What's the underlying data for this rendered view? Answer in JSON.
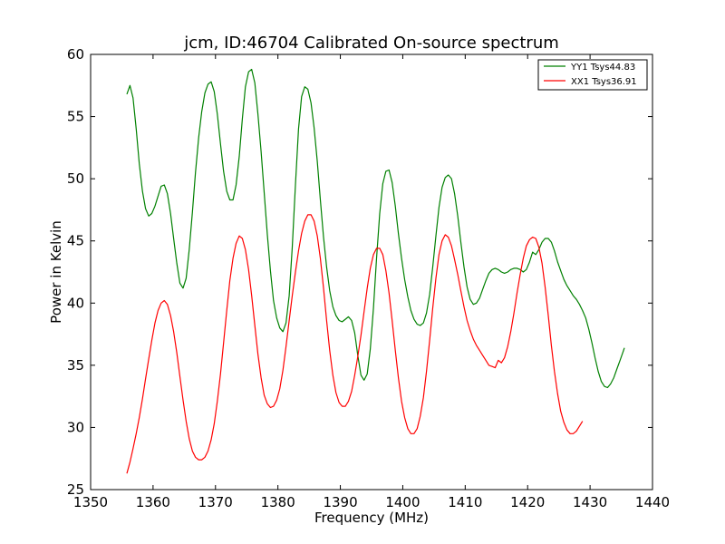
{
  "chart_data": {
    "type": "line",
    "title": "jcm, ID:46704 Calibrated On-source spectrum",
    "xlabel": "Frequency (MHz)",
    "ylabel": "Power in Kelvin",
    "xlim": [
      1350,
      1440
    ],
    "ylim": [
      25,
      60
    ],
    "xticks": [
      "1350",
      "1360",
      "1370",
      "1380",
      "1390",
      "1400",
      "1410",
      "1420",
      "1430",
      "1440"
    ],
    "yticks": [
      "25",
      "30",
      "35",
      "40",
      "45",
      "50",
      "55",
      "60"
    ],
    "grid": false,
    "legend_position": "top-right",
    "series": [
      {
        "name": "YY1 Tsys44.83",
        "color": "#008000",
        "points": [
          [
            1355.8,
            56.8
          ],
          [
            1356.3,
            57.5
          ],
          [
            1356.8,
            56.5
          ],
          [
            1357.3,
            54.0
          ],
          [
            1357.8,
            51.2
          ],
          [
            1358.3,
            49.0
          ],
          [
            1358.8,
            47.6
          ],
          [
            1359.3,
            47.0
          ],
          [
            1359.8,
            47.2
          ],
          [
            1360.3,
            47.8
          ],
          [
            1360.8,
            48.6
          ],
          [
            1361.3,
            49.4
          ],
          [
            1361.8,
            49.5
          ],
          [
            1362.3,
            48.8
          ],
          [
            1362.8,
            47.2
          ],
          [
            1363.3,
            45.2
          ],
          [
            1363.8,
            43.2
          ],
          [
            1364.3,
            41.6
          ],
          [
            1364.8,
            41.2
          ],
          [
            1365.3,
            42.0
          ],
          [
            1365.8,
            44.3
          ],
          [
            1366.3,
            47.3
          ],
          [
            1366.8,
            50.5
          ],
          [
            1367.3,
            53.3
          ],
          [
            1367.8,
            55.4
          ],
          [
            1368.3,
            56.9
          ],
          [
            1368.8,
            57.6
          ],
          [
            1369.3,
            57.8
          ],
          [
            1369.8,
            57.0
          ],
          [
            1370.3,
            55.2
          ],
          [
            1370.8,
            52.8
          ],
          [
            1371.3,
            50.6
          ],
          [
            1371.8,
            49.0
          ],
          [
            1372.3,
            48.3
          ],
          [
            1372.8,
            48.3
          ],
          [
            1373.3,
            49.5
          ],
          [
            1373.8,
            51.8
          ],
          [
            1374.3,
            54.8
          ],
          [
            1374.8,
            57.4
          ],
          [
            1375.3,
            58.6
          ],
          [
            1375.8,
            58.8
          ],
          [
            1376.3,
            57.7
          ],
          [
            1376.8,
            55.2
          ],
          [
            1377.3,
            52.2
          ],
          [
            1377.8,
            48.9
          ],
          [
            1378.3,
            45.5
          ],
          [
            1378.8,
            42.6
          ],
          [
            1379.3,
            40.2
          ],
          [
            1379.8,
            38.8
          ],
          [
            1380.3,
            38.0
          ],
          [
            1380.8,
            37.7
          ],
          [
            1381.3,
            38.4
          ],
          [
            1381.8,
            40.6
          ],
          [
            1382.3,
            44.5
          ],
          [
            1382.8,
            49.5
          ],
          [
            1383.3,
            54.0
          ],
          [
            1383.8,
            56.6
          ],
          [
            1384.3,
            57.4
          ],
          [
            1384.8,
            57.2
          ],
          [
            1385.3,
            56.1
          ],
          [
            1385.8,
            54.1
          ],
          [
            1386.3,
            51.4
          ],
          [
            1386.8,
            48.3
          ],
          [
            1387.3,
            45.3
          ],
          [
            1387.8,
            42.9
          ],
          [
            1388.3,
            41.0
          ],
          [
            1388.8,
            39.7
          ],
          [
            1389.3,
            39.0
          ],
          [
            1389.8,
            38.6
          ],
          [
            1390.3,
            38.5
          ],
          [
            1390.8,
            38.7
          ],
          [
            1391.3,
            38.9
          ],
          [
            1391.8,
            38.6
          ],
          [
            1392.3,
            37.6
          ],
          [
            1392.8,
            35.8
          ],
          [
            1393.3,
            34.2
          ],
          [
            1393.8,
            33.8
          ],
          [
            1394.3,
            34.3
          ],
          [
            1394.8,
            36.3
          ],
          [
            1395.3,
            39.6
          ],
          [
            1395.8,
            43.6
          ],
          [
            1396.3,
            47.2
          ],
          [
            1396.8,
            49.6
          ],
          [
            1397.3,
            50.6
          ],
          [
            1397.8,
            50.7
          ],
          [
            1398.3,
            49.7
          ],
          [
            1398.8,
            47.8
          ],
          [
            1399.3,
            45.6
          ],
          [
            1399.8,
            43.6
          ],
          [
            1400.3,
            41.9
          ],
          [
            1400.8,
            40.5
          ],
          [
            1401.3,
            39.4
          ],
          [
            1401.8,
            38.7
          ],
          [
            1402.3,
            38.3
          ],
          [
            1402.8,
            38.2
          ],
          [
            1403.3,
            38.4
          ],
          [
            1403.8,
            39.2
          ],
          [
            1404.3,
            40.7
          ],
          [
            1404.8,
            42.9
          ],
          [
            1405.3,
            45.4
          ],
          [
            1405.8,
            47.7
          ],
          [
            1406.3,
            49.3
          ],
          [
            1406.8,
            50.1
          ],
          [
            1407.3,
            50.3
          ],
          [
            1407.8,
            50.0
          ],
          [
            1408.3,
            48.8
          ],
          [
            1408.8,
            47.0
          ],
          [
            1409.3,
            44.9
          ],
          [
            1409.8,
            42.9
          ],
          [
            1410.3,
            41.3
          ],
          [
            1410.8,
            40.3
          ],
          [
            1411.3,
            39.9
          ],
          [
            1411.8,
            40.0
          ],
          [
            1412.3,
            40.4
          ],
          [
            1412.8,
            41.1
          ],
          [
            1413.3,
            41.8
          ],
          [
            1413.8,
            42.4
          ],
          [
            1414.3,
            42.7
          ],
          [
            1414.8,
            42.8
          ],
          [
            1415.3,
            42.7
          ],
          [
            1415.8,
            42.5
          ],
          [
            1416.3,
            42.4
          ],
          [
            1416.8,
            42.5
          ],
          [
            1417.3,
            42.7
          ],
          [
            1417.8,
            42.8
          ],
          [
            1418.3,
            42.8
          ],
          [
            1418.8,
            42.7
          ],
          [
            1419.3,
            42.5
          ],
          [
            1419.8,
            42.7
          ],
          [
            1420.3,
            43.3
          ],
          [
            1420.8,
            44.1
          ],
          [
            1421.3,
            43.9
          ],
          [
            1421.8,
            44.3
          ],
          [
            1422.3,
            44.9
          ],
          [
            1422.8,
            45.2
          ],
          [
            1423.3,
            45.2
          ],
          [
            1423.8,
            44.9
          ],
          [
            1424.3,
            44.2
          ],
          [
            1424.8,
            43.3
          ],
          [
            1425.3,
            42.6
          ],
          [
            1425.8,
            41.9
          ],
          [
            1426.3,
            41.4
          ],
          [
            1426.8,
            41.0
          ],
          [
            1427.3,
            40.6
          ],
          [
            1427.8,
            40.3
          ],
          [
            1428.3,
            39.9
          ],
          [
            1428.8,
            39.4
          ],
          [
            1429.3,
            38.8
          ],
          [
            1429.8,
            37.9
          ],
          [
            1430.3,
            36.8
          ],
          [
            1430.8,
            35.6
          ],
          [
            1431.3,
            34.5
          ],
          [
            1431.8,
            33.7
          ],
          [
            1432.3,
            33.3
          ],
          [
            1432.8,
            33.2
          ],
          [
            1433.3,
            33.5
          ],
          [
            1433.8,
            34.0
          ],
          [
            1434.3,
            34.7
          ],
          [
            1434.8,
            35.4
          ],
          [
            1435.3,
            36.1
          ],
          [
            1435.5,
            36.4
          ]
        ]
      },
      {
        "name": "XX1 Tsys36.91",
        "color": "#ff0000",
        "points": [
          [
            1355.8,
            26.3
          ],
          [
            1356.3,
            27.2
          ],
          [
            1356.8,
            28.3
          ],
          [
            1357.3,
            29.5
          ],
          [
            1357.8,
            30.8
          ],
          [
            1358.3,
            32.3
          ],
          [
            1358.8,
            33.9
          ],
          [
            1359.3,
            35.5
          ],
          [
            1359.8,
            37.0
          ],
          [
            1360.3,
            38.4
          ],
          [
            1360.8,
            39.4
          ],
          [
            1361.3,
            40.0
          ],
          [
            1361.8,
            40.2
          ],
          [
            1362.3,
            39.9
          ],
          [
            1362.8,
            39.0
          ],
          [
            1363.3,
            37.7
          ],
          [
            1363.8,
            36.0
          ],
          [
            1364.3,
            34.1
          ],
          [
            1364.8,
            32.2
          ],
          [
            1365.3,
            30.5
          ],
          [
            1365.8,
            29.1
          ],
          [
            1366.3,
            28.1
          ],
          [
            1366.8,
            27.6
          ],
          [
            1367.3,
            27.4
          ],
          [
            1367.8,
            27.4
          ],
          [
            1368.3,
            27.6
          ],
          [
            1368.8,
            28.1
          ],
          [
            1369.3,
            29.0
          ],
          [
            1369.8,
            30.3
          ],
          [
            1370.3,
            32.1
          ],
          [
            1370.8,
            34.3
          ],
          [
            1371.3,
            36.8
          ],
          [
            1371.8,
            39.4
          ],
          [
            1372.3,
            41.8
          ],
          [
            1372.8,
            43.6
          ],
          [
            1373.3,
            44.8
          ],
          [
            1373.8,
            45.4
          ],
          [
            1374.3,
            45.2
          ],
          [
            1374.8,
            44.3
          ],
          [
            1375.3,
            42.7
          ],
          [
            1375.8,
            40.6
          ],
          [
            1376.3,
            38.2
          ],
          [
            1376.8,
            35.9
          ],
          [
            1377.3,
            34.0
          ],
          [
            1377.8,
            32.6
          ],
          [
            1378.3,
            31.9
          ],
          [
            1378.8,
            31.6
          ],
          [
            1379.3,
            31.7
          ],
          [
            1379.8,
            32.2
          ],
          [
            1380.3,
            33.1
          ],
          [
            1380.8,
            34.6
          ],
          [
            1381.3,
            36.5
          ],
          [
            1381.8,
            38.6
          ],
          [
            1382.3,
            40.6
          ],
          [
            1382.8,
            42.5
          ],
          [
            1383.3,
            44.2
          ],
          [
            1383.8,
            45.6
          ],
          [
            1384.3,
            46.6
          ],
          [
            1384.8,
            47.1
          ],
          [
            1385.3,
            47.1
          ],
          [
            1385.8,
            46.6
          ],
          [
            1386.3,
            45.4
          ],
          [
            1386.8,
            43.6
          ],
          [
            1387.3,
            41.2
          ],
          [
            1387.8,
            38.6
          ],
          [
            1388.3,
            36.2
          ],
          [
            1388.8,
            34.2
          ],
          [
            1389.3,
            32.8
          ],
          [
            1389.8,
            32.0
          ],
          [
            1390.3,
            31.7
          ],
          [
            1390.8,
            31.7
          ],
          [
            1391.3,
            32.1
          ],
          [
            1391.8,
            32.9
          ],
          [
            1392.3,
            34.2
          ],
          [
            1392.8,
            35.7
          ],
          [
            1393.3,
            37.4
          ],
          [
            1393.8,
            39.3
          ],
          [
            1394.3,
            41.2
          ],
          [
            1394.8,
            42.8
          ],
          [
            1395.3,
            43.9
          ],
          [
            1395.8,
            44.4
          ],
          [
            1396.3,
            44.4
          ],
          [
            1396.8,
            43.9
          ],
          [
            1397.3,
            42.6
          ],
          [
            1397.8,
            40.8
          ],
          [
            1398.3,
            38.6
          ],
          [
            1398.8,
            36.2
          ],
          [
            1399.3,
            34.0
          ],
          [
            1399.8,
            32.1
          ],
          [
            1400.3,
            30.8
          ],
          [
            1400.8,
            29.9
          ],
          [
            1401.3,
            29.5
          ],
          [
            1401.8,
            29.5
          ],
          [
            1402.3,
            29.9
          ],
          [
            1402.8,
            30.9
          ],
          [
            1403.3,
            32.4
          ],
          [
            1403.8,
            34.5
          ],
          [
            1404.3,
            37.0
          ],
          [
            1404.8,
            39.6
          ],
          [
            1405.3,
            42.0
          ],
          [
            1405.8,
            43.9
          ],
          [
            1406.3,
            45.0
          ],
          [
            1406.8,
            45.5
          ],
          [
            1407.3,
            45.3
          ],
          [
            1407.8,
            44.6
          ],
          [
            1408.3,
            43.5
          ],
          [
            1408.8,
            42.3
          ],
          [
            1409.3,
            41.0
          ],
          [
            1409.8,
            39.7
          ],
          [
            1410.3,
            38.6
          ],
          [
            1410.8,
            37.8
          ],
          [
            1411.3,
            37.1
          ],
          [
            1411.8,
            36.6
          ],
          [
            1412.3,
            36.2
          ],
          [
            1412.8,
            35.8
          ],
          [
            1413.3,
            35.4
          ],
          [
            1413.8,
            35.0
          ],
          [
            1414.3,
            34.9
          ],
          [
            1414.8,
            34.8
          ],
          [
            1415.3,
            35.4
          ],
          [
            1415.8,
            35.2
          ],
          [
            1416.3,
            35.6
          ],
          [
            1416.8,
            36.5
          ],
          [
            1417.3,
            37.7
          ],
          [
            1417.8,
            39.2
          ],
          [
            1418.3,
            40.8
          ],
          [
            1418.8,
            42.3
          ],
          [
            1419.3,
            43.6
          ],
          [
            1419.8,
            44.6
          ],
          [
            1420.3,
            45.1
          ],
          [
            1420.8,
            45.3
          ],
          [
            1421.3,
            45.2
          ],
          [
            1421.8,
            44.5
          ],
          [
            1422.3,
            43.2
          ],
          [
            1422.8,
            41.3
          ],
          [
            1423.3,
            39.0
          ],
          [
            1423.8,
            36.6
          ],
          [
            1424.3,
            34.5
          ],
          [
            1424.8,
            32.7
          ],
          [
            1425.3,
            31.3
          ],
          [
            1425.8,
            30.4
          ],
          [
            1426.3,
            29.8
          ],
          [
            1426.8,
            29.5
          ],
          [
            1427.3,
            29.5
          ],
          [
            1427.8,
            29.7
          ],
          [
            1428.3,
            30.1
          ],
          [
            1428.8,
            30.5
          ]
        ]
      }
    ]
  }
}
